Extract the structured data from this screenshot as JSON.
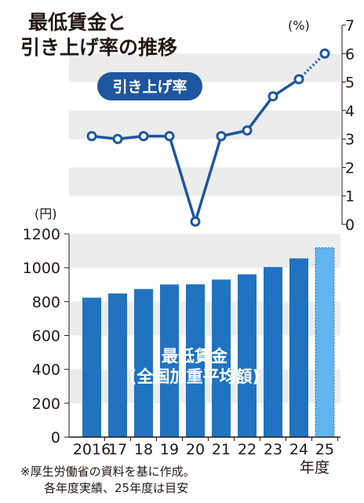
{
  "header": {
    "title_line1": "最低賃金と",
    "title_line2": "引き上げ率の推移"
  },
  "footer": {
    "note_line1": "※厚生労働省の資料を基に作成。",
    "note_line2": "各年度実績、25年度は目安"
  },
  "colors": {
    "bar": "#1f73c0",
    "bar_estimate": "#5fb6ec",
    "line": "#1e56a0",
    "band": "#ececec",
    "text": "#231815"
  },
  "chart_data": [
    {
      "type": "line",
      "series_label": "引き上げ率",
      "unit_label": "(%)",
      "x": [
        "2016",
        "17",
        "18",
        "19",
        "20",
        "21",
        "22",
        "23",
        "24",
        "25"
      ],
      "values": [
        3.1,
        3.0,
        3.1,
        3.1,
        0.1,
        3.1,
        3.3,
        4.5,
        5.1,
        6.0
      ],
      "estimate_from_index": 8,
      "y_ticks": [
        "0",
        "1",
        "2",
        "3",
        "4",
        "5",
        "6",
        "7"
      ],
      "ylim": [
        0,
        7
      ],
      "grid": "alternating bands"
    },
    {
      "type": "bar",
      "series_label_line1": "最低賃金",
      "series_label_line2": "(全国加重平均額)",
      "unit_label": "(円)",
      "categories": [
        "2016",
        "17",
        "18",
        "19",
        "20",
        "21",
        "22",
        "23",
        "24",
        "25"
      ],
      "values": [
        823,
        848,
        874,
        901,
        902,
        930,
        961,
        1004,
        1055,
        1118
      ],
      "estimate_index": 9,
      "y_ticks": [
        "0",
        "200",
        "400",
        "600",
        "800",
        "1000",
        "1200"
      ],
      "ylim": [
        0,
        1200
      ],
      "xlabel": "年度",
      "grid": "alternating bands"
    }
  ]
}
